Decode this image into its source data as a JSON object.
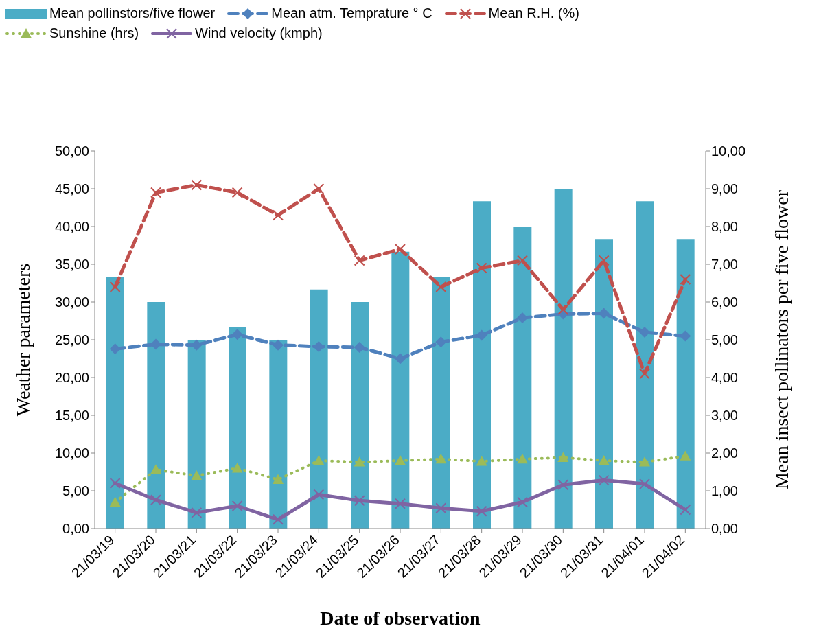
{
  "chart_data": {
    "type": "bar",
    "xlabel": "Date of observation",
    "ylabel": "Weather parameters",
    "y2label": "Mean insect pollinators per five flower",
    "categories": [
      "21/03/19",
      "21/03/20",
      "21/03/21",
      "21/03/22",
      "21/03/23",
      "21/03/24",
      "21/03/25",
      "21/03/26",
      "21/03/27",
      "21/03/28",
      "21/03/29",
      "21/03/30",
      "21/03/31",
      "21/04/01",
      "21/04/02"
    ],
    "series": [
      {
        "name": "Mean pollinstors/five flower",
        "axis": "y2",
        "color": "#4bacc6",
        "values": [
          6.67,
          6.0,
          5.0,
          5.33,
          5.0,
          6.33,
          6.0,
          7.33,
          6.67,
          8.67,
          8.0,
          9.0,
          7.67,
          8.67,
          7.67
        ]
      },
      {
        "name": "Mean atm. Temprature ° C",
        "type": "line",
        "color": "#4f81bd",
        "marker": "diamond",
        "line_style": "dashed",
        "values": [
          23.8,
          24.4,
          24.3,
          25.7,
          24.3,
          24.1,
          24.0,
          22.5,
          24.7,
          25.6,
          27.9,
          28.4,
          28.5,
          26.0,
          25.5
        ]
      },
      {
        "name": "Mean R.H. (%)",
        "type": "line",
        "color": "#c0504d",
        "marker": "cross",
        "line_style": "dashed",
        "values": [
          32.0,
          44.5,
          45.5,
          44.5,
          41.5,
          45.0,
          35.5,
          37.0,
          32.0,
          34.5,
          35.5,
          29.0,
          35.5,
          20.5,
          33.0
        ]
      },
      {
        "name": "Sunshine (hrs)",
        "type": "line",
        "color": "#9bbb59",
        "marker": "triangle",
        "line_style": "dotted",
        "values": [
          3.5,
          7.8,
          7.0,
          8.0,
          6.5,
          9.0,
          8.8,
          9.0,
          9.2,
          8.9,
          9.2,
          9.4,
          9.0,
          8.8,
          9.6
        ]
      },
      {
        "name": "Wind velocity (kmph)",
        "type": "line",
        "color": "#8064a2",
        "marker": "cross",
        "line_style": "solid",
        "values": [
          6.0,
          3.8,
          2.1,
          3.0,
          1.2,
          4.5,
          3.7,
          3.3,
          2.7,
          2.3,
          3.5,
          5.8,
          6.4,
          5.9,
          2.5
        ]
      }
    ],
    "ylim": [
      0,
      50
    ],
    "yticks": [
      {
        "value": 0,
        "label": "0,00"
      },
      {
        "value": 5,
        "label": "5,00"
      },
      {
        "value": 10,
        "label": "10,00"
      },
      {
        "value": 15,
        "label": "15,00"
      },
      {
        "value": 20,
        "label": "20,00"
      },
      {
        "value": 25,
        "label": "25,00"
      },
      {
        "value": 30,
        "label": "30,00"
      },
      {
        "value": 35,
        "label": "35,00"
      },
      {
        "value": 40,
        "label": "40,00"
      },
      {
        "value": 45,
        "label": "45,00"
      },
      {
        "value": 50,
        "label": "50,00"
      }
    ],
    "y2lim": [
      0,
      10
    ],
    "y2ticks": [
      {
        "value": 0,
        "label": "0,00"
      },
      {
        "value": 1,
        "label": "1,00"
      },
      {
        "value": 2,
        "label": "2,00"
      },
      {
        "value": 3,
        "label": "3,00"
      },
      {
        "value": 4,
        "label": "4,00"
      },
      {
        "value": 5,
        "label": "5,00"
      },
      {
        "value": 6,
        "label": "6,00"
      },
      {
        "value": 7,
        "label": "7,00"
      },
      {
        "value": 8,
        "label": "8,00"
      },
      {
        "value": 9,
        "label": "9,00"
      },
      {
        "value": 10,
        "label": "10,00"
      }
    ],
    "grid": false,
    "legend": "top left"
  }
}
